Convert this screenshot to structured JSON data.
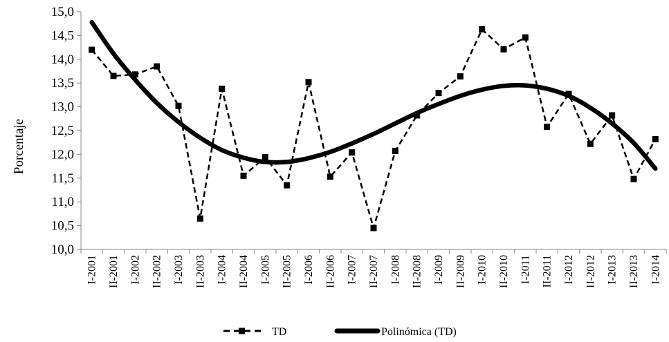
{
  "chart_data": {
    "type": "line",
    "ylabel": "Porcentaje",
    "xlabel": "",
    "ylim": [
      10.0,
      15.0
    ],
    "ytick_labels": [
      "10,0",
      "10,5",
      "11,0",
      "11,5",
      "12,0",
      "12,5",
      "13,0",
      "13,5",
      "14,0",
      "14,5",
      "15,0"
    ],
    "categories": [
      "I-2001",
      "II-2001",
      "I-2002",
      "II-2002",
      "I-2003",
      "II-2003",
      "I-2004",
      "II-2004",
      "I-2005",
      "II-2005",
      "I-2006",
      "II-2006",
      "I-2007",
      "II-2007",
      "I-2008",
      "II-2008",
      "I-2009",
      "II-2009",
      "I-2010",
      "II-2010",
      "I-2011",
      "II-2011",
      "I-2012",
      "II-2012",
      "I-2013",
      "II-2013",
      "I-2014"
    ],
    "series": [
      {
        "name": "TD",
        "style": "dashed-square-markers",
        "color": "#000000",
        "values": [
          14.2,
          13.65,
          13.68,
          13.85,
          13.02,
          10.65,
          13.38,
          11.55,
          11.94,
          11.35,
          13.52,
          11.53,
          12.04,
          10.45,
          12.07,
          12.82,
          13.29,
          13.64,
          14.63,
          14.21,
          14.46,
          12.58,
          13.27,
          12.22,
          12.82,
          11.48,
          12.32
        ]
      },
      {
        "name": "Polinómica (TD)",
        "style": "thick-solid-trendline",
        "color": "#000000",
        "values": [
          14.78,
          14.12,
          13.57,
          13.08,
          12.68,
          12.35,
          12.09,
          11.93,
          11.84,
          11.84,
          11.92,
          12.05,
          12.23,
          12.43,
          12.65,
          12.87,
          13.06,
          13.23,
          13.36,
          13.44,
          13.45,
          13.38,
          13.23,
          12.98,
          12.65,
          12.24,
          11.7
        ]
      }
    ],
    "legend": {
      "position": "bottom",
      "entries": [
        "TD",
        "Polinómica (TD)"
      ]
    },
    "grid": false
  }
}
